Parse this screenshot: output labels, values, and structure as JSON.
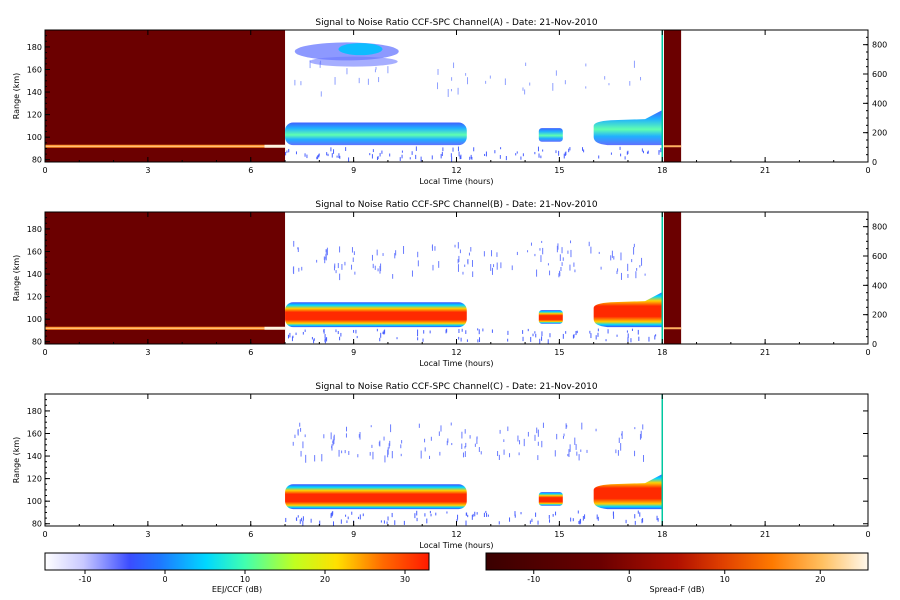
{
  "panels": [
    {
      "title": "Signal to Noise Ratio CCF-SPC Channel(A) - Date: 21-Nov-2010",
      "ylabel": "Range (km)",
      "xlabel": "Local Time (hours)",
      "xticks": [
        "0",
        "3",
        "6",
        "9",
        "12",
        "15",
        "18",
        "21",
        "0"
      ],
      "yticks": [
        "80",
        "100",
        "120",
        "140",
        "160",
        "180"
      ],
      "right_ticks": [
        "0",
        "200",
        "400",
        "600",
        "800"
      ],
      "has_spreadf": true,
      "eej_strength": "low"
    },
    {
      "title": "Signal to Noise Ratio CCF-SPC Channel(B) - Date: 21-Nov-2010",
      "ylabel": "Range (km)",
      "xlabel": "Local Time (hours)",
      "xticks": [
        "0",
        "3",
        "6",
        "9",
        "12",
        "15",
        "18",
        "21",
        "0"
      ],
      "yticks": [
        "80",
        "100",
        "120",
        "140",
        "160",
        "180"
      ],
      "right_ticks": [
        "0",
        "200",
        "400",
        "600",
        "800"
      ],
      "has_spreadf": true,
      "eej_strength": "high"
    },
    {
      "title": "Signal to Noise Ratio CCF-SPC Channel(C) - Date: 21-Nov-2010",
      "ylabel": "Range (km)",
      "xlabel": "Local Time (hours)",
      "xticks": [
        "0",
        "3",
        "6",
        "9",
        "12",
        "15",
        "18",
        "21",
        "0"
      ],
      "yticks": [
        "80",
        "100",
        "120",
        "140",
        "160",
        "180"
      ],
      "right_ticks": [],
      "has_spreadf": false,
      "eej_strength": "high"
    }
  ],
  "colorbars": [
    {
      "label": "EEJ/CCF (dB)",
      "ticks": [
        "-10",
        "0",
        "10",
        "20",
        "30"
      ],
      "range": [
        -15,
        33
      ],
      "tick_values": [
        -10,
        0,
        10,
        20,
        30
      ],
      "scale": "jet"
    },
    {
      "label": "Spread-F (dB)",
      "ticks": [
        "-10",
        "0",
        "10",
        "20"
      ],
      "range": [
        -15,
        25
      ],
      "tick_values": [
        -10,
        0,
        10,
        20
      ],
      "scale": "heat"
    }
  ],
  "chart_data": [
    {
      "type": "heatmap",
      "title": "Signal to Noise Ratio CCF-SPC Channel(A) - Date: 21-Nov-2010",
      "xlabel": "Local Time (hours)",
      "ylabel": "Range (km)",
      "xlim": [
        0,
        24
      ],
      "ylim": [
        78,
        195
      ],
      "y2lim": [
        0,
        900
      ]
    },
    {
      "type": "heatmap",
      "title": "Signal to Noise Ratio CCF-SPC Channel(B) - Date: 21-Nov-2010",
      "xlabel": "Local Time (hours)",
      "ylabel": "Range (km)",
      "xlim": [
        0,
        24
      ],
      "ylim": [
        78,
        195
      ],
      "y2lim": [
        0,
        900
      ]
    },
    {
      "type": "heatmap",
      "title": "Signal to Noise Ratio CCF-SPC Channel(C) - Date: 21-Nov-2010",
      "xlabel": "Local Time (hours)",
      "ylabel": "Range (km)",
      "xlim": [
        0,
        24
      ],
      "ylim": [
        78,
        195
      ]
    }
  ],
  "colors": {
    "dark_red": "#6b0000",
    "axis": "#000000"
  }
}
